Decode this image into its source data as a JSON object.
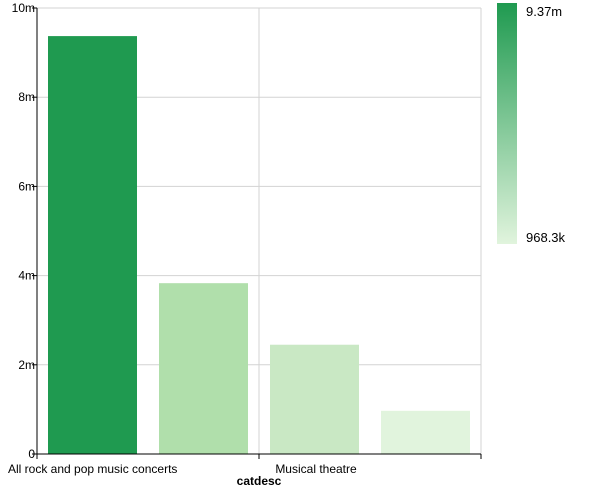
{
  "chart_data": {
    "type": "bar",
    "title": "",
    "xlabel": "catdesc",
    "ylabel": "",
    "categories": [
      "All rock and pop music concerts",
      "",
      "Musical theatre",
      ""
    ],
    "values": [
      9370000,
      3830000,
      2450000,
      968300
    ],
    "ylim": [
      0,
      10000000
    ],
    "y_ticks": [
      {
        "value": 0,
        "label": "0"
      },
      {
        "value": 2000000,
        "label": "2m"
      },
      {
        "value": 4000000,
        "label": "4m"
      },
      {
        "value": 6000000,
        "label": "6m"
      },
      {
        "value": 8000000,
        "label": "8m"
      },
      {
        "value": 10000000,
        "label": "10m"
      }
    ],
    "grid": true,
    "legend": {
      "placement": "right",
      "type": "gradient",
      "max_label": "9.37m",
      "min_label": "968.3k",
      "color_max": "#1f9a50",
      "color_min": "#e1f4dd"
    },
    "bar_colors": [
      "#1f9a50",
      "#b0dfab",
      "#c9e8c4",
      "#e1f4dd"
    ]
  }
}
